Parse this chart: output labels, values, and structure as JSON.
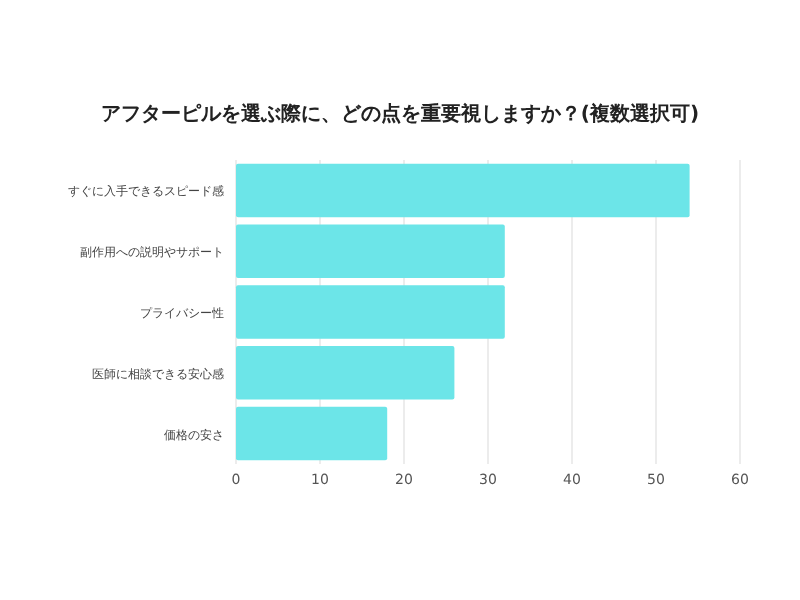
{
  "chart_data": {
    "type": "bar",
    "orientation": "horizontal",
    "title": "アフターピルを選ぶ際に、どの点を重要視しますか？(複数選択可)",
    "categories": [
      "すぐに入手できるスピード感",
      "副作用への説明やサポート",
      "プライバシー性",
      "医師に相談できる安心感",
      "価格の安さ"
    ],
    "values": [
      54,
      32,
      32,
      26,
      18
    ],
    "color": "#6ce5e8",
    "xlim": [
      0,
      60
    ],
    "xticks": [
      0,
      10,
      20,
      30,
      40,
      50,
      60
    ],
    "grid": "x"
  }
}
